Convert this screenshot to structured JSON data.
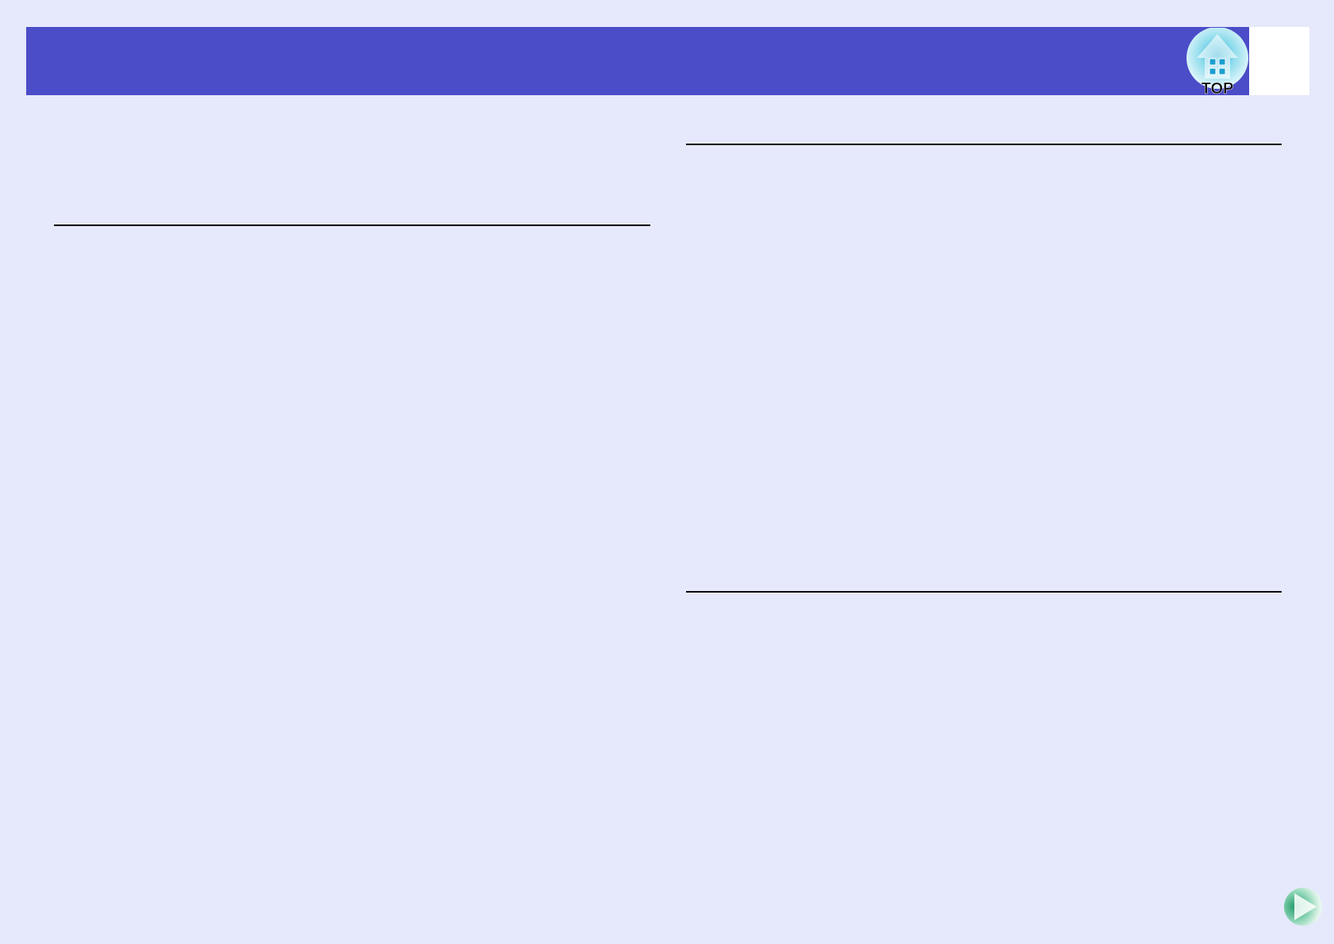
{
  "header": {
    "color": "#4b4cc7"
  },
  "nav": {
    "top_button": {
      "label": "TOP",
      "icon": "home-icon"
    },
    "next_button": {
      "icon": "next-page-arrow-icon"
    }
  }
}
